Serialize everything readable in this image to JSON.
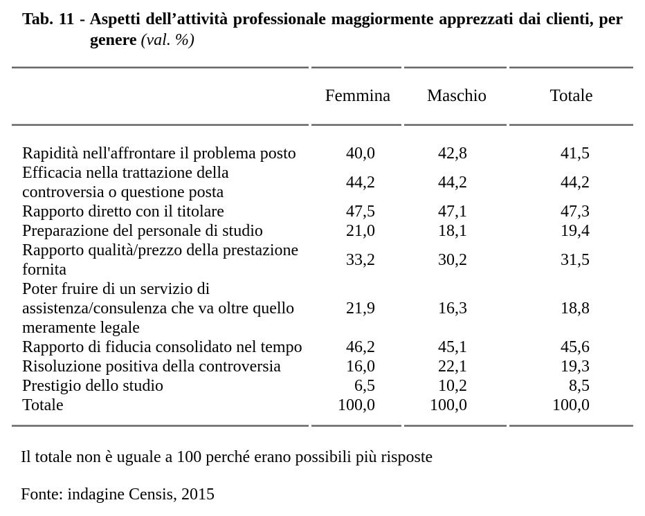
{
  "title": {
    "line1": "Tab. 11 - Aspetti dell’attività professionale maggiormente apprezzati dai clienti, per",
    "line2_bold": "genere",
    "line2_italic": "(val. %)"
  },
  "table": {
    "columns": [
      "Femmina",
      "Maschio",
      "Totale"
    ],
    "rows": [
      {
        "label_lines": [
          "Rapidità nell'affrontare il problema posto"
        ],
        "values": [
          "40,0",
          "42,8",
          "41,5"
        ]
      },
      {
        "label_lines": [
          "Efficacia nella trattazione della",
          "controversia o questione posta"
        ],
        "values": [
          "44,2",
          "44,2",
          "44,2"
        ]
      },
      {
        "label_lines": [
          "Rapporto diretto con il titolare"
        ],
        "values": [
          "47,5",
          "47,1",
          "47,3"
        ]
      },
      {
        "label_lines": [
          "Preparazione del personale di studio"
        ],
        "values": [
          "21,0",
          "18,1",
          "19,4"
        ]
      },
      {
        "label_lines": [
          "Rapporto qualità/prezzo della prestazione",
          "fornita"
        ],
        "values": [
          "33,2",
          "30,2",
          "31,5"
        ]
      },
      {
        "label_lines": [
          "Poter fruire di un servizio di",
          "assistenza/consulenza che va oltre quello",
          "meramente legale"
        ],
        "values": [
          "21,9",
          "16,3",
          "18,8"
        ]
      },
      {
        "label_lines": [
          "Rapporto di fiducia consolidato nel tempo"
        ],
        "values": [
          "46,2",
          "45,1",
          "45,6"
        ]
      },
      {
        "label_lines": [
          "Risoluzione positiva della controversia"
        ],
        "values": [
          "16,0",
          "22,1",
          "19,3"
        ]
      },
      {
        "label_lines": [
          "Prestigio dello studio"
        ],
        "values": [
          "6,5",
          "10,2",
          "8,5"
        ]
      },
      {
        "label_lines": [
          "Totale"
        ],
        "values": [
          "100,0",
          "100,0",
          "100,0"
        ]
      }
    ]
  },
  "notes": {
    "footnote": "Il totale non è uguale a 100 perché erano possibili più risposte",
    "source": "Fonte: indagine Censis, 2015"
  }
}
